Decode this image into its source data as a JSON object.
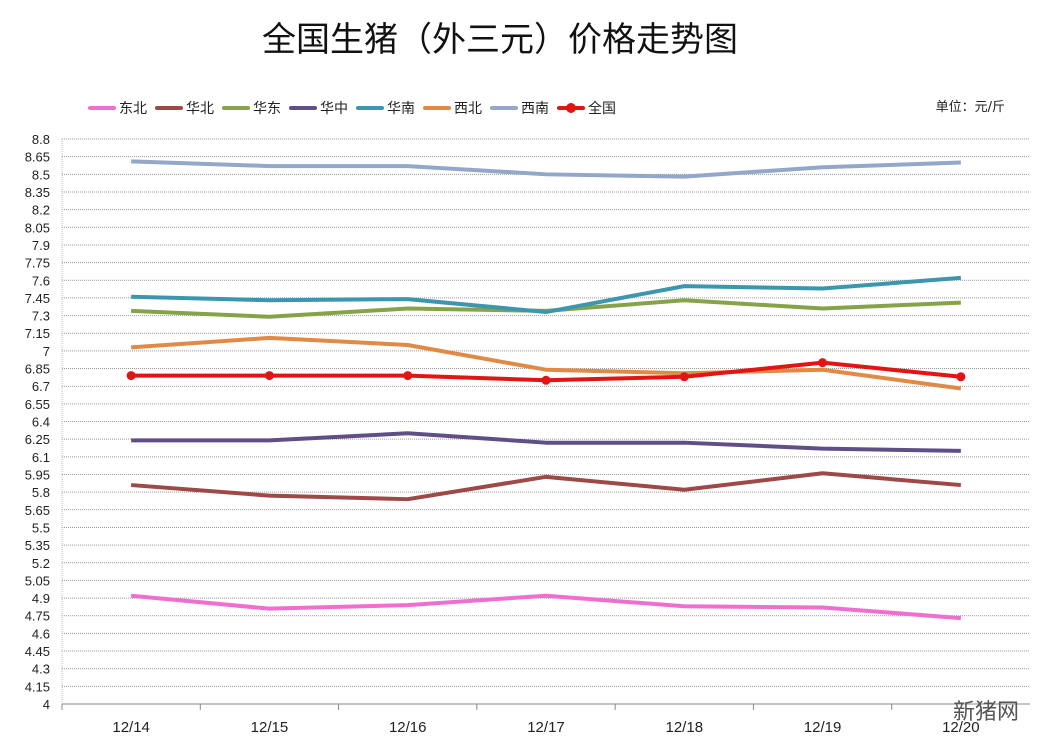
{
  "chart_data": {
    "type": "line",
    "title": "全国生猪（外三元）价格走势图",
    "unit_label": "单位：元/斤",
    "categories": [
      "12/14",
      "12/15",
      "12/16",
      "12/17",
      "12/18",
      "12/19",
      "12/20"
    ],
    "ylim": [
      4,
      8.8
    ],
    "yticks": [
      "4",
      "4.15",
      "4.3",
      "4.45",
      "4.6",
      "4.75",
      "4.9",
      "5.05",
      "5.2",
      "5.35",
      "5.5",
      "5.65",
      "5.8",
      "5.95",
      "6.1",
      "6.25",
      "6.4",
      "6.55",
      "6.7",
      "6.85",
      "7",
      "7.15",
      "7.3",
      "7.45",
      "7.6",
      "7.75",
      "7.9",
      "8.05",
      "8.2",
      "8.35",
      "8.5",
      "8.65",
      "8.8"
    ],
    "grid": true,
    "legend_position": "top",
    "series": [
      {
        "name": "东北",
        "color": "#ee6fcf",
        "values": [
          4.92,
          4.81,
          4.84,
          4.92,
          4.83,
          4.82,
          4.73
        ]
      },
      {
        "name": "华北",
        "color": "#9e4848",
        "values": [
          5.86,
          5.77,
          5.74,
          5.93,
          5.82,
          5.96,
          5.86
        ]
      },
      {
        "name": "华东",
        "color": "#86a34a",
        "values": [
          7.34,
          7.29,
          7.36,
          7.34,
          7.43,
          7.36,
          7.41
        ]
      },
      {
        "name": "华中",
        "color": "#5f4f86",
        "values": [
          6.24,
          6.24,
          6.3,
          6.22,
          6.22,
          6.17,
          6.15
        ]
      },
      {
        "name": "华南",
        "color": "#3c96ad",
        "values": [
          7.46,
          7.43,
          7.44,
          7.33,
          7.55,
          7.53,
          7.62
        ]
      },
      {
        "name": "西北",
        "color": "#e08a46",
        "values": [
          7.03,
          7.11,
          7.05,
          6.84,
          6.81,
          6.84,
          6.68
        ]
      },
      {
        "name": "西南",
        "color": "#92a7c9",
        "values": [
          8.61,
          8.57,
          8.57,
          8.5,
          8.48,
          8.56,
          8.6
        ]
      },
      {
        "name": "全国",
        "color": "#e31414",
        "markers": true,
        "values": [
          6.79,
          6.79,
          6.79,
          6.75,
          6.78,
          6.9,
          6.78
        ]
      }
    ]
  },
  "watermark": "新猪网"
}
